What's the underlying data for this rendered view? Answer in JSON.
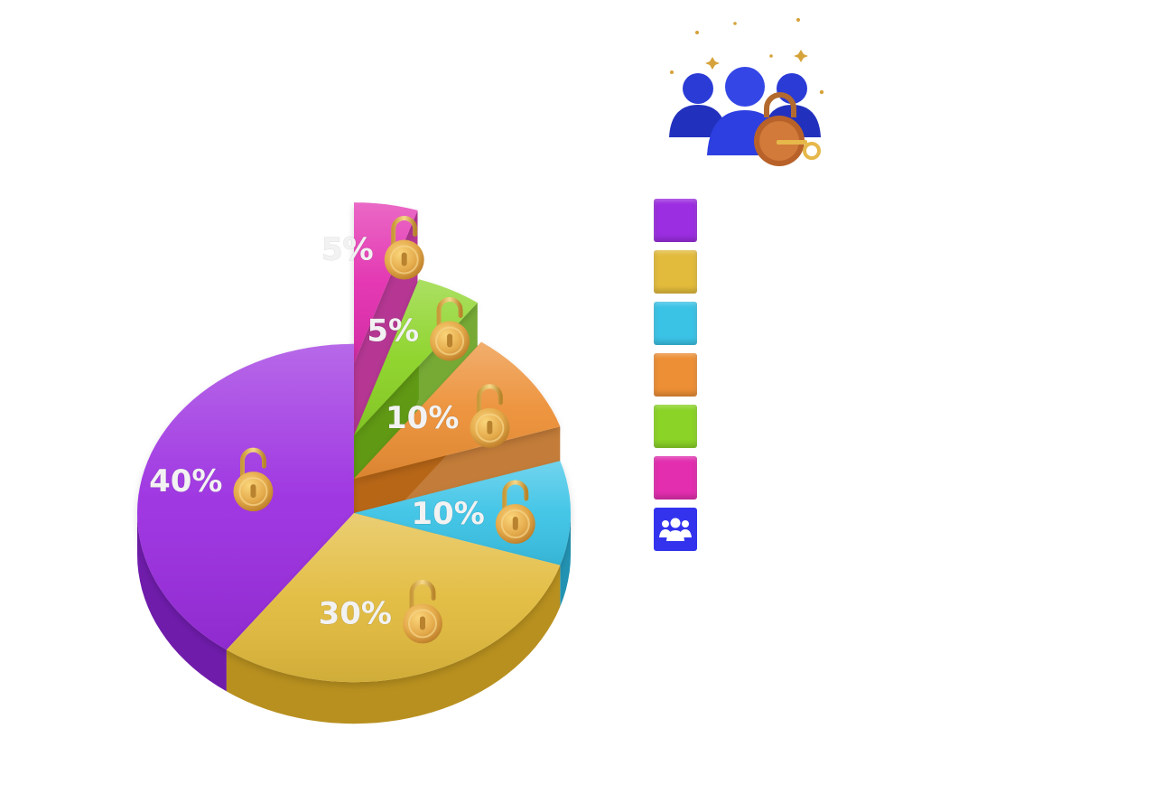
{
  "chart_data": {
    "type": "pie",
    "title": "",
    "slices": [
      {
        "label": "40%",
        "value": 40,
        "color": "#9b2ee0",
        "side": "#6f1cab"
      },
      {
        "label": "30%",
        "value": 30,
        "color": "#e2bb3c",
        "side": "#b8901f"
      },
      {
        "label": "10%",
        "value": 10,
        "color": "#3bc3e6",
        "side": "#2393b3"
      },
      {
        "label": "10%",
        "value": 10,
        "color": "#ec8f35",
        "side": "#b96516"
      },
      {
        "label": "5%",
        "value": 5,
        "color": "#8bd327",
        "side": "#5e9b12"
      },
      {
        "label": "5%",
        "value": 5,
        "color": "#e22eaf",
        "side": "#a81480"
      }
    ],
    "legend": {
      "placement": "right",
      "swatch_colors": [
        "#9b2ee0",
        "#e2bb3c",
        "#3bc3e6",
        "#ec8f35",
        "#8bd327",
        "#e22eaf"
      ],
      "extra_icon": {
        "name": "users-group-icon",
        "color": "#3333ee"
      }
    }
  },
  "decorations": {
    "slice_icon": "padlock-icon",
    "header_icon": "users-with-padlock-and-key-icon",
    "lock_color": "#e3a94a"
  }
}
